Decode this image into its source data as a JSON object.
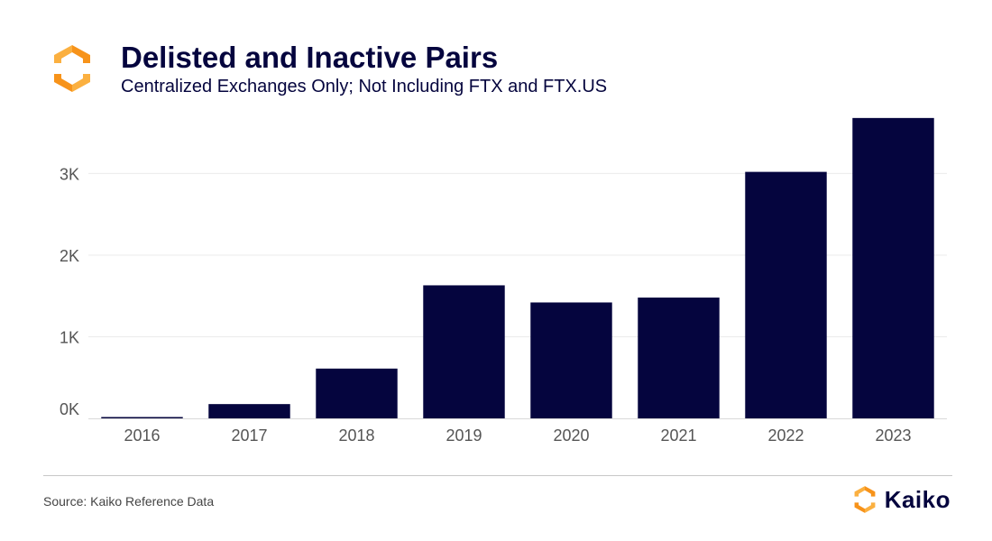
{
  "header": {
    "title": "Delisted and Inactive Pairs",
    "subtitle": "Centralized Exchanges Only; Not Including FTX and FTX.US",
    "logo_icon": "kaiko-logo-icon"
  },
  "footer": {
    "source": "Source: Kaiko Reference Data",
    "brand": "Kaiko",
    "brand_icon": "kaiko-logo-icon"
  },
  "colors": {
    "bar": "#05053e",
    "text": "#05053e",
    "axis_text": "#555555",
    "grid": "#ebebeb",
    "logo_orange": "#f7931a",
    "logo_orange_light": "#fbb040"
  },
  "chart_data": {
    "type": "bar",
    "title": "Delisted and Inactive Pairs",
    "subtitle": "Centralized Exchanges Only; Not Including FTX and FTX.US",
    "categories": [
      "2016",
      "2017",
      "2018",
      "2019",
      "2020",
      "2021",
      "2022",
      "2023"
    ],
    "values": [
      10,
      175,
      610,
      1630,
      1420,
      1480,
      3020,
      3680
    ],
    "yticks": [
      0,
      1000,
      2000,
      3000
    ],
    "ytick_labels": [
      "0K",
      "1K",
      "2K",
      "3K"
    ],
    "ylim": [
      0,
      3800
    ],
    "xlabel": "",
    "ylabel": "",
    "grid": true
  }
}
